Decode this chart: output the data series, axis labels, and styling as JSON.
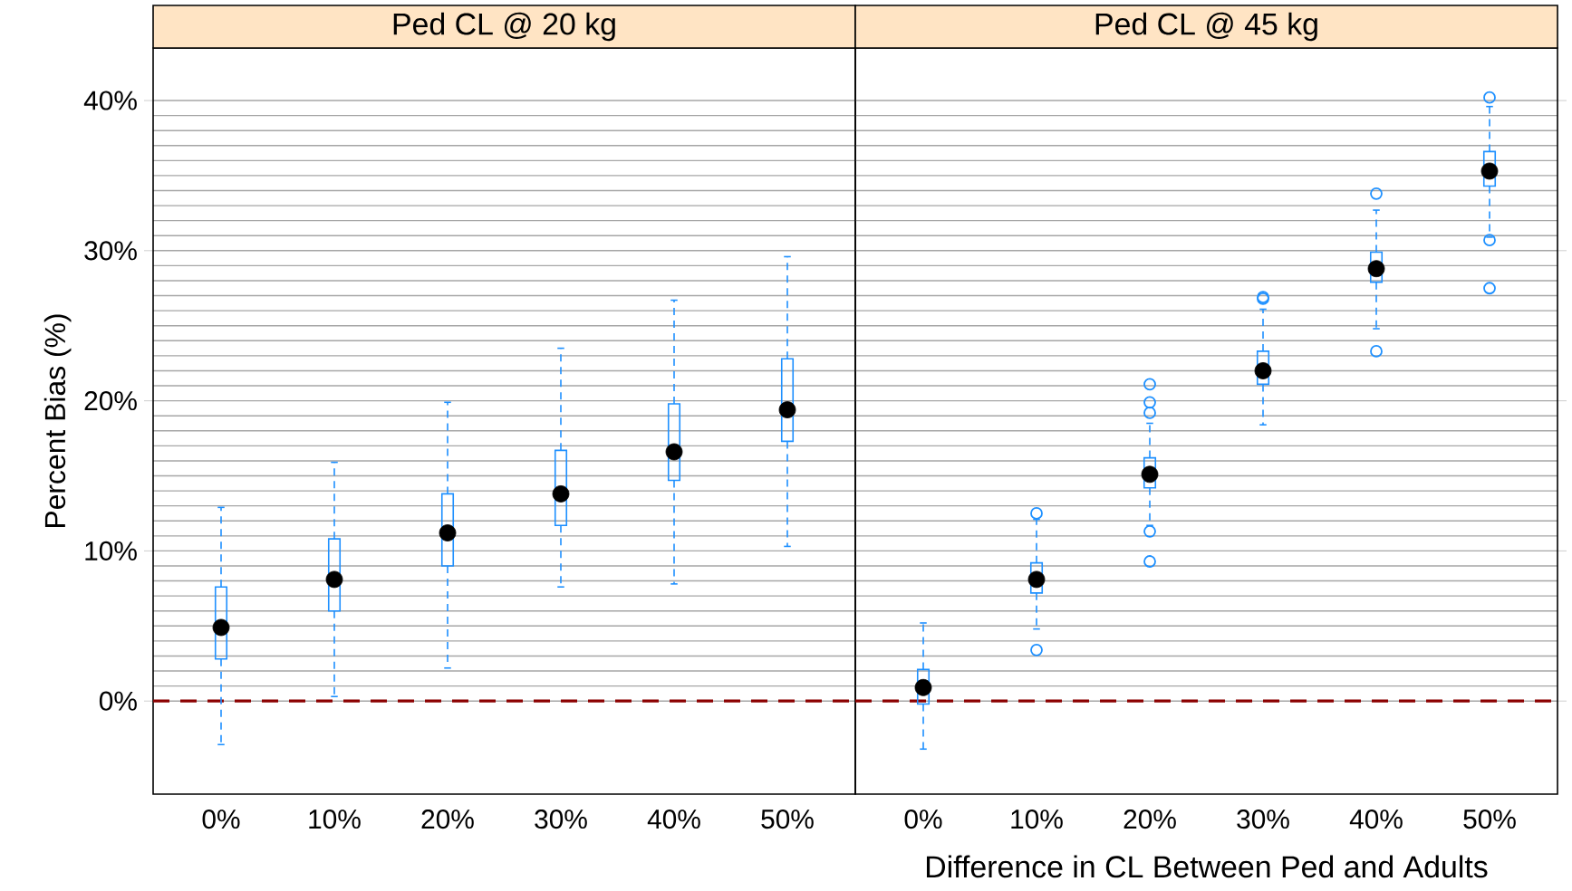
{
  "chart_data": [
    {
      "type": "box",
      "title": "Ped CL @ 20 kg",
      "ylabel": "Percent Bias (%)",
      "categories": [
        "0%",
        "10%",
        "20%",
        "30%",
        "40%",
        "50%"
      ],
      "color": "#1e90ff",
      "boxes": [
        {
          "low": -2.9,
          "q1": 2.8,
          "median": 4.9,
          "q3": 7.6,
          "high": 12.9
        },
        {
          "low": 0.3,
          "q1": 6.0,
          "median": 8.1,
          "q3": 10.8,
          "high": 15.9
        },
        {
          "low": 2.2,
          "q1": 9.0,
          "median": 11.2,
          "q3": 13.8,
          "high": 19.9
        },
        {
          "low": 7.6,
          "q1": 11.7,
          "median": 13.8,
          "q3": 16.7,
          "high": 23.5
        },
        {
          "low": 7.8,
          "q1": 14.7,
          "median": 16.6,
          "q3": 19.8,
          "high": 26.7
        },
        {
          "low": 10.3,
          "q1": 17.3,
          "median": 19.4,
          "q3": 22.8,
          "high": 29.6
        }
      ],
      "ylim": [
        -6.2,
        43.5
      ],
      "yticks": [
        {
          "value": 0,
          "label": "0%"
        },
        {
          "value": 10,
          "label": "10%"
        },
        {
          "value": 20,
          "label": "20%"
        },
        {
          "value": 30,
          "label": "30%"
        },
        {
          "value": 40,
          "label": "40%"
        }
      ],
      "grid": "y",
      "ref_lines": [
        {
          "axis": "y",
          "value": 0,
          "color": "#8b0000",
          "line_style": "dashed"
        }
      ]
    },
    {
      "type": "box",
      "title": "Ped CL @ 45 kg",
      "xlabel": "Difference in CL Between Ped and Adults",
      "categories": [
        "0%",
        "10%",
        "20%",
        "30%",
        "40%",
        "50%"
      ],
      "color": "#1e90ff",
      "boxes": [
        {
          "low": -3.2,
          "q1": -0.2,
          "median": 0.9,
          "q3": 2.1,
          "high": 5.2
        },
        {
          "low": 4.8,
          "q1": 7.2,
          "median": 8.1,
          "q3": 9.2,
          "high": 12.1,
          "outliers": [
            12.5,
            3.4
          ]
        },
        {
          "low": 11.7,
          "q1": 14.2,
          "median": 15.1,
          "q3": 16.2,
          "high": 18.5,
          "outliers": [
            21.1,
            19.9,
            19.2,
            11.3,
            9.3
          ]
        },
        {
          "low": 18.4,
          "q1": 21.1,
          "median": 22.0,
          "q3": 23.3,
          "high": 26.1,
          "outliers": [
            26.9,
            26.8
          ]
        },
        {
          "low": 24.8,
          "q1": 27.9,
          "median": 28.8,
          "q3": 29.9,
          "high": 32.7,
          "outliers": [
            33.8,
            23.3
          ]
        },
        {
          "low": 30.9,
          "q1": 34.3,
          "median": 35.3,
          "q3": 36.6,
          "high": 39.6,
          "outliers": [
            40.2,
            30.7,
            27.5
          ]
        }
      ],
      "ylim": [
        -6.2,
        43.5
      ],
      "yticks": [
        {
          "value": 0,
          "label": null
        },
        {
          "value": 10,
          "label": null
        },
        {
          "value": 20,
          "label": null
        },
        {
          "value": 30,
          "label": null
        },
        {
          "value": 40,
          "label": null
        }
      ],
      "tick_labels": "x",
      "grid": "y",
      "ref_lines": [
        {
          "axis": "y",
          "value": 0,
          "color": "#8b0000",
          "line_style": "dashed"
        }
      ]
    }
  ]
}
